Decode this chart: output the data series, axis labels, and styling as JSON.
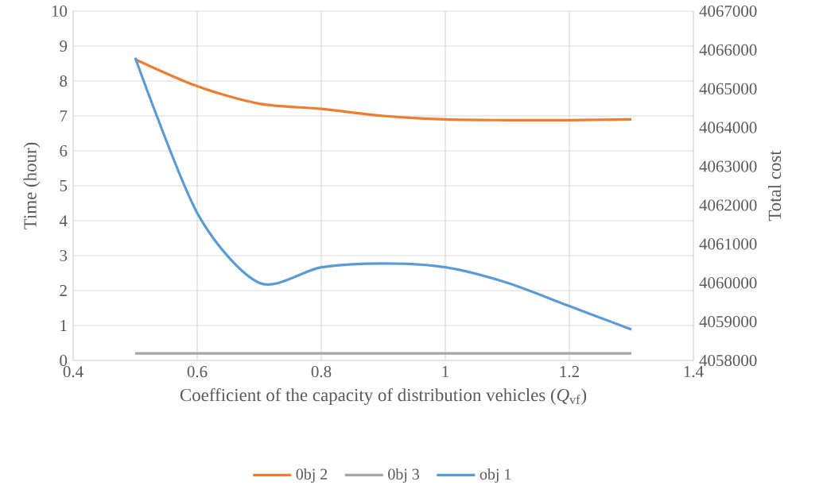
{
  "chart_data": {
    "type": "line",
    "xlabel": "Coefficient of the capacity of distribution vehicles (*Q*$_{vf}$)",
    "ylabel": "Time (hour)",
    "y2label": "Total cost",
    "x": [
      0.5,
      0.6,
      0.7,
      0.8,
      0.9,
      1.0,
      1.1,
      1.2,
      1.3
    ],
    "series": [
      {
        "name": "0bj 2",
        "color": "#ed7d31",
        "values": [
          8.62,
          7.85,
          7.35,
          7.2,
          7.0,
          6.9,
          6.88,
          6.88,
          6.9
        ]
      },
      {
        "name": "0bj 3",
        "color": "#a5a5a5",
        "values": [
          0.2,
          0.2,
          0.2,
          0.2,
          0.2,
          0.2,
          0.2,
          0.2,
          0.2
        ]
      },
      {
        "name": "obj 1",
        "color": "#5b9bd5",
        "axis": "y2",
        "values": [
          4065800,
          4061800,
          4060000,
          4060400,
          4060500,
          4060400,
          4060000,
          4059400,
          4058800
        ]
      }
    ],
    "xlim": [
      0.4,
      1.4
    ],
    "xticks": [
      0.4,
      0.6,
      0.8,
      1,
      1.2,
      1.4
    ],
    "ylim": [
      0,
      10
    ],
    "yticks": [
      0,
      1,
      2,
      3,
      4,
      5,
      6,
      7,
      8,
      9,
      10
    ],
    "y2lim": [
      4058000,
      4067000
    ],
    "y2ticks": [
      4058000,
      4059000,
      4060000,
      4061000,
      4062000,
      4063000,
      4064000,
      4065000,
      4066000,
      4067000
    ],
    "grid": true,
    "legend": "bottom",
    "marker": "none",
    "line_style": "solid"
  }
}
